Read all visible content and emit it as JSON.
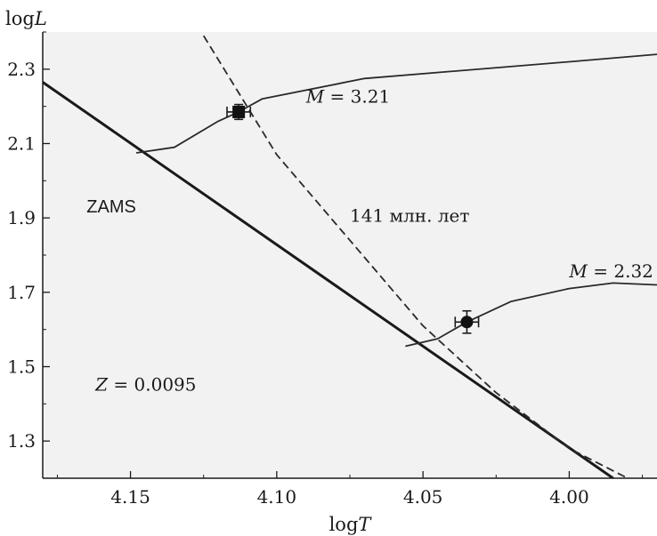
{
  "chart_data": {
    "type": "line",
    "title": "",
    "xlabel": {
      "prefix": "log",
      "var": "T"
    },
    "ylabel": {
      "prefix": "log",
      "var": "L"
    },
    "xlim": [
      4.18,
      3.97
    ],
    "ylim": [
      1.2,
      2.4
    ],
    "x_reversed": true,
    "grid": false,
    "x_ticks": [
      4.15,
      4.1,
      4.05,
      4.0
    ],
    "x_tick_labels": [
      "4.15",
      "4.10",
      "4.05",
      "4.00"
    ],
    "y_ticks": [
      1.3,
      1.5,
      1.7,
      1.9,
      2.1,
      2.3
    ],
    "y_tick_labels": [
      "1.3",
      "1.5",
      "1.7",
      "1.9",
      "2.1",
      "2.3"
    ],
    "series": [
      {
        "name": "ZAMS",
        "style": "solid-thick",
        "x": [
          4.18,
          3.985
        ],
        "y": [
          2.265,
          1.2
        ]
      },
      {
        "name": "141 млн. лет",
        "style": "dashed",
        "x": [
          4.125,
          4.1,
          4.075,
          4.05,
          4.025,
          4.0,
          3.98
        ],
        "y": [
          2.39,
          2.07,
          1.84,
          1.61,
          1.43,
          1.28,
          1.2
        ]
      },
      {
        "name": "M = 3.21",
        "style": "solid-thin",
        "x": [
          4.148,
          4.135,
          4.12,
          4.113,
          4.105,
          4.07,
          4.0,
          3.97
        ],
        "y": [
          2.075,
          2.09,
          2.16,
          2.185,
          2.22,
          2.275,
          2.32,
          2.34
        ]
      },
      {
        "name": "M = 2.32",
        "style": "solid-thin",
        "x": [
          4.056,
          4.045,
          4.035,
          4.02,
          4.0,
          3.985,
          3.97
        ],
        "y": [
          1.555,
          1.575,
          1.62,
          1.675,
          1.71,
          1.725,
          1.72
        ]
      }
    ],
    "points": [
      {
        "marker": "square",
        "x": 4.113,
        "y": 2.185,
        "xerr": 0.004,
        "yerr": 0.02
      },
      {
        "marker": "circle",
        "x": 4.035,
        "y": 1.62,
        "xerr": 0.004,
        "yerr": 0.03
      }
    ],
    "annotations": [
      {
        "id": "m321",
        "var": "M",
        "text": " = 3.21",
        "x": 4.09,
        "y": 2.21
      },
      {
        "id": "m232",
        "var": "M",
        "text": " = 2.32",
        "x": 4.0,
        "y": 1.74
      },
      {
        "id": "age",
        "var": "",
        "text": "141 млн. лет",
        "x": 4.075,
        "y": 1.89
      },
      {
        "id": "zams",
        "var": "",
        "text": "ZAMS",
        "x": 4.165,
        "y": 1.915
      },
      {
        "id": "metal",
        "var": "Z",
        "text": " = 0.0095",
        "x": 4.162,
        "y": 1.435
      }
    ]
  }
}
